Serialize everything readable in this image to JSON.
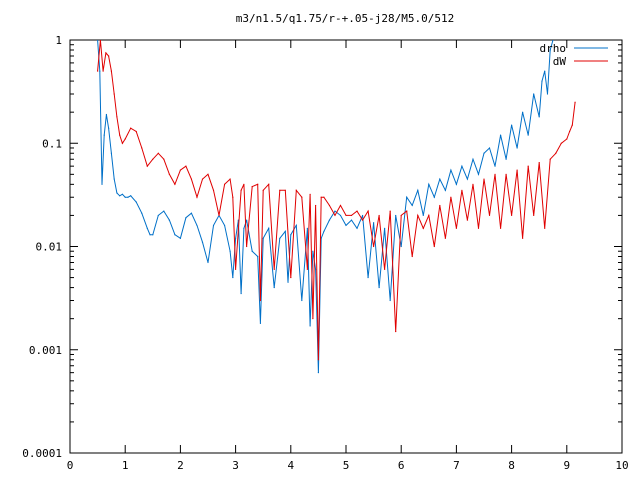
{
  "chart_data": {
    "type": "line",
    "title": "m3/n1.5/q1.75/r-+.05-j28/M5.0/512",
    "xlabel": "",
    "ylabel": "",
    "xlim": [
      0,
      10
    ],
    "ylim": [
      0.0001,
      1
    ],
    "yscale": "log",
    "x_ticks": [
      "0",
      "1",
      "2",
      "3",
      "4",
      "5",
      "6",
      "7",
      "8",
      "9",
      "10"
    ],
    "y_ticks": [
      "0.0001",
      "0.001",
      "0.01",
      "0.1",
      "1"
    ],
    "grid": false,
    "legend_position": "top-right",
    "series": [
      {
        "name": "drho",
        "color": "#0070c8",
        "x": [
          0.5,
          0.54,
          0.58,
          0.62,
          0.66,
          0.7,
          0.75,
          0.8,
          0.85,
          0.9,
          0.95,
          1.0,
          1.05,
          1.1,
          1.2,
          1.3,
          1.4,
          1.45,
          1.5,
          1.6,
          1.7,
          1.8,
          1.9,
          2.0,
          2.1,
          2.2,
          2.3,
          2.4,
          2.5,
          2.6,
          2.7,
          2.8,
          2.9,
          2.95,
          3.0,
          3.05,
          3.1,
          3.15,
          3.2,
          3.3,
          3.4,
          3.45,
          3.5,
          3.6,
          3.7,
          3.8,
          3.9,
          3.95,
          4.0,
          4.1,
          4.2,
          4.3,
          4.35,
          4.4,
          4.45,
          4.5,
          4.55,
          4.6,
          4.7,
          4.8,
          4.9,
          5.0,
          5.1,
          5.2,
          5.3,
          5.4,
          5.5,
          5.6,
          5.7,
          5.8,
          5.9,
          6.0,
          6.1,
          6.2,
          6.3,
          6.4,
          6.5,
          6.6,
          6.7,
          6.8,
          6.9,
          7.0,
          7.1,
          7.2,
          7.3,
          7.4,
          7.5,
          7.6,
          7.7,
          7.8,
          7.9,
          8.0,
          8.1,
          8.2,
          8.3,
          8.4,
          8.5,
          8.55,
          8.6,
          8.65,
          8.7,
          8.75
        ],
        "y": [
          1.0,
          0.5,
          0.04,
          0.12,
          0.19,
          0.14,
          0.08,
          0.045,
          0.033,
          0.031,
          0.032,
          0.03,
          0.03,
          0.031,
          0.027,
          0.021,
          0.015,
          0.013,
          0.013,
          0.02,
          0.022,
          0.018,
          0.013,
          0.012,
          0.019,
          0.021,
          0.016,
          0.011,
          0.007,
          0.016,
          0.02,
          0.016,
          0.009,
          0.005,
          0.012,
          0.018,
          0.0035,
          0.015,
          0.018,
          0.009,
          0.008,
          0.0018,
          0.012,
          0.015,
          0.004,
          0.012,
          0.014,
          0.0045,
          0.013,
          0.016,
          0.003,
          0.015,
          0.0017,
          0.009,
          0.006,
          0.0006,
          0.012,
          0.014,
          0.018,
          0.022,
          0.02,
          0.016,
          0.018,
          0.015,
          0.02,
          0.005,
          0.017,
          0.004,
          0.015,
          0.003,
          0.02,
          0.01,
          0.03,
          0.025,
          0.035,
          0.02,
          0.04,
          0.03,
          0.045,
          0.035,
          0.055,
          0.04,
          0.06,
          0.045,
          0.07,
          0.05,
          0.08,
          0.09,
          0.06,
          0.12,
          0.07,
          0.15,
          0.09,
          0.2,
          0.12,
          0.3,
          0.18,
          0.4,
          0.5,
          0.3,
          0.8,
          1.0
        ]
      },
      {
        "name": "dW",
        "color": "#e00000",
        "x": [
          0.5,
          0.55,
          0.6,
          0.65,
          0.7,
          0.75,
          0.8,
          0.85,
          0.9,
          0.95,
          1.0,
          1.1,
          1.2,
          1.3,
          1.4,
          1.5,
          1.6,
          1.7,
          1.8,
          1.9,
          2.0,
          2.1,
          2.2,
          2.3,
          2.4,
          2.5,
          2.6,
          2.7,
          2.8,
          2.9,
          2.95,
          3.0,
          3.1,
          3.15,
          3.2,
          3.3,
          3.4,
          3.45,
          3.5,
          3.6,
          3.7,
          3.8,
          3.9,
          4.0,
          4.1,
          4.2,
          4.3,
          4.35,
          4.4,
          4.45,
          4.5,
          4.55,
          4.6,
          4.7,
          4.8,
          4.9,
          5.0,
          5.1,
          5.2,
          5.3,
          5.4,
          5.5,
          5.6,
          5.7,
          5.8,
          5.9,
          6.0,
          6.1,
          6.2,
          6.3,
          6.4,
          6.5,
          6.6,
          6.7,
          6.8,
          6.9,
          7.0,
          7.1,
          7.2,
          7.3,
          7.4,
          7.5,
          7.6,
          7.7,
          7.8,
          7.9,
          8.0,
          8.1,
          8.2,
          8.3,
          8.4,
          8.5,
          8.6,
          8.7,
          8.8,
          8.9,
          9.0,
          9.05,
          9.1,
          9.15
        ],
        "y": [
          0.5,
          1.0,
          0.5,
          0.75,
          0.7,
          0.5,
          0.3,
          0.18,
          0.12,
          0.1,
          0.11,
          0.14,
          0.13,
          0.09,
          0.06,
          0.07,
          0.08,
          0.07,
          0.05,
          0.04,
          0.055,
          0.06,
          0.045,
          0.03,
          0.045,
          0.05,
          0.035,
          0.02,
          0.04,
          0.045,
          0.03,
          0.006,
          0.035,
          0.04,
          0.01,
          0.038,
          0.04,
          0.003,
          0.035,
          0.04,
          0.006,
          0.035,
          0.035,
          0.005,
          0.035,
          0.03,
          0.006,
          0.032,
          0.002,
          0.025,
          0.0008,
          0.03,
          0.03,
          0.025,
          0.02,
          0.025,
          0.02,
          0.02,
          0.022,
          0.018,
          0.022,
          0.01,
          0.02,
          0.006,
          0.022,
          0.0015,
          0.02,
          0.022,
          0.008,
          0.02,
          0.015,
          0.02,
          0.01,
          0.025,
          0.012,
          0.03,
          0.015,
          0.035,
          0.018,
          0.04,
          0.015,
          0.045,
          0.02,
          0.05,
          0.015,
          0.05,
          0.02,
          0.055,
          0.012,
          0.06,
          0.02,
          0.065,
          0.015,
          0.07,
          0.08,
          0.1,
          0.11,
          0.13,
          0.15,
          0.25
        ]
      }
    ]
  }
}
